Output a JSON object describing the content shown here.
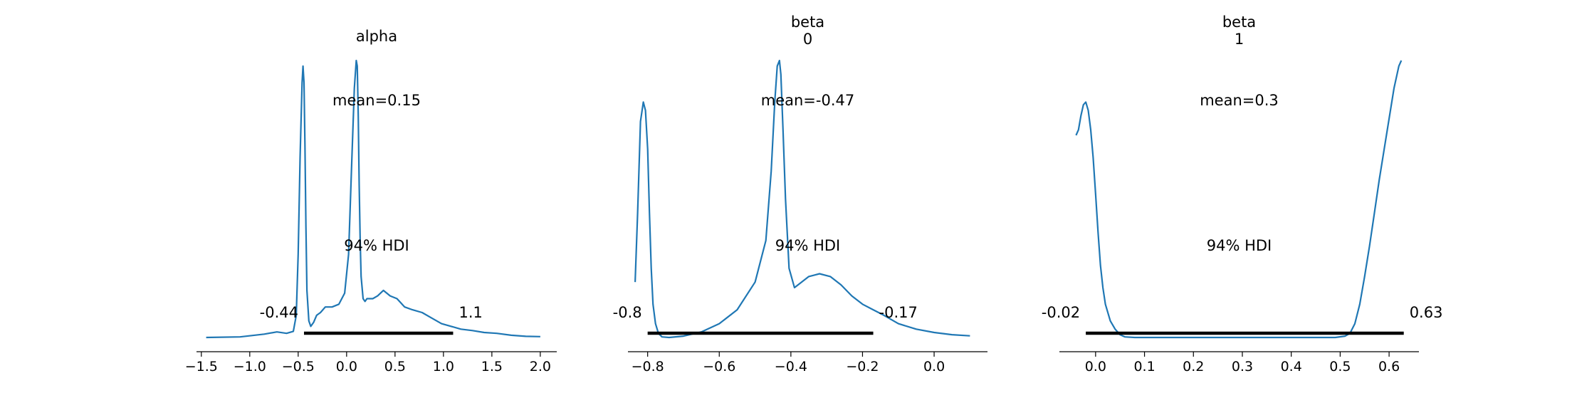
{
  "chart_data": [
    {
      "type": "area",
      "title_lines": [
        "alpha"
      ],
      "mean_label": "mean=0.15",
      "hdi_label": "94% HDI",
      "hdi": [
        -0.44,
        1.1
      ],
      "hdi_low_label": "-0.44",
      "hdi_high_label": "1.1",
      "xlim": [
        -1.55,
        2.17
      ],
      "xticks": [
        -1.5,
        -1.0,
        -0.5,
        0.0,
        0.5,
        1.0,
        1.5,
        2.0
      ],
      "xtick_labels": [
        "−1.5",
        "−1.0",
        "−0.5",
        "0.0",
        "0.5",
        "1.0",
        "1.5",
        "2.0"
      ],
      "series": [
        {
          "color": "#1f77b4",
          "x": [
            -1.45,
            -1.1,
            -0.85,
            -0.72,
            -0.62,
            -0.55,
            -0.52,
            -0.5,
            -0.48,
            -0.46,
            -0.45,
            -0.44,
            -0.43,
            -0.42,
            -0.41,
            -0.39,
            -0.37,
            -0.34,
            -0.31,
            -0.27,
            -0.22,
            -0.15,
            -0.08,
            -0.02,
            0.02,
            0.05,
            0.08,
            0.1,
            0.11,
            0.12,
            0.13,
            0.14,
            0.15,
            0.17,
            0.19,
            0.21,
            0.23,
            0.27,
            0.32,
            0.38,
            0.45,
            0.52,
            0.6,
            0.68,
            0.78,
            0.88,
            0.98,
            1.08,
            1.18,
            1.3,
            1.42,
            1.55,
            1.7,
            1.85,
            2.0
          ],
          "y": [
            0.0,
            0.002,
            0.012,
            0.02,
            0.015,
            0.022,
            0.08,
            0.3,
            0.65,
            0.92,
            0.98,
            0.92,
            0.7,
            0.4,
            0.17,
            0.06,
            0.04,
            0.055,
            0.08,
            0.09,
            0.11,
            0.11,
            0.12,
            0.16,
            0.3,
            0.6,
            0.9,
            1.0,
            0.98,
            0.8,
            0.55,
            0.35,
            0.22,
            0.14,
            0.13,
            0.14,
            0.14,
            0.14,
            0.15,
            0.17,
            0.15,
            0.14,
            0.11,
            0.1,
            0.09,
            0.07,
            0.05,
            0.04,
            0.03,
            0.025,
            0.018,
            0.015,
            0.008,
            0.004,
            0.003
          ]
        }
      ]
    },
    {
      "type": "area",
      "title_lines": [
        "beta",
        "0"
      ],
      "mean_label": "mean=-0.47",
      "hdi_label": "94% HDI",
      "hdi": [
        -0.8,
        -0.17
      ],
      "hdi_low_label": "-0.8",
      "hdi_high_label": "-0.17",
      "xlim": [
        -0.855,
        0.149
      ],
      "xticks": [
        -0.8,
        -0.6,
        -0.4,
        -0.2,
        0.0
      ],
      "xtick_labels": [
        "−0.8",
        "−0.6",
        "−0.4",
        "−0.2",
        "0.0"
      ],
      "series": [
        {
          "color": "#1f77b4",
          "x": [
            -0.835,
            -0.828,
            -0.82,
            -0.812,
            -0.806,
            -0.8,
            -0.795,
            -0.79,
            -0.785,
            -0.778,
            -0.77,
            -0.76,
            -0.74,
            -0.7,
            -0.65,
            -0.6,
            -0.55,
            -0.5,
            -0.47,
            -0.455,
            -0.445,
            -0.438,
            -0.432,
            -0.428,
            -0.422,
            -0.415,
            -0.405,
            -0.39,
            -0.38,
            -0.37,
            -0.35,
            -0.32,
            -0.29,
            -0.26,
            -0.23,
            -0.2,
            -0.17,
            -0.14,
            -0.1,
            -0.05,
            0.0,
            0.05,
            0.1
          ],
          "y": [
            0.2,
            0.45,
            0.78,
            0.85,
            0.82,
            0.68,
            0.45,
            0.25,
            0.12,
            0.05,
            0.015,
            0.002,
            0.0,
            0.005,
            0.02,
            0.05,
            0.1,
            0.2,
            0.35,
            0.6,
            0.85,
            0.98,
            1.0,
            0.95,
            0.75,
            0.5,
            0.25,
            0.18,
            0.19,
            0.2,
            0.22,
            0.23,
            0.22,
            0.19,
            0.15,
            0.12,
            0.1,
            0.08,
            0.05,
            0.03,
            0.018,
            0.01,
            0.006
          ]
        }
      ]
    },
    {
      "type": "area",
      "title_lines": [
        "beta",
        "1"
      ],
      "mean_label": "mean=0.3",
      "hdi_label": "94% HDI",
      "hdi": [
        -0.02,
        0.63
      ],
      "hdi_low_label": "-0.02",
      "hdi_high_label": "0.63",
      "xlim": [
        -0.074,
        0.661
      ],
      "xticks": [
        0.0,
        0.1,
        0.2,
        0.3,
        0.4,
        0.5,
        0.6
      ],
      "xtick_labels": [
        "0.0",
        "0.1",
        "0.2",
        "0.3",
        "0.4",
        "0.5",
        "0.6"
      ],
      "series": [
        {
          "color": "#1f77b4",
          "x": [
            -0.04,
            -0.035,
            -0.03,
            -0.025,
            -0.02,
            -0.015,
            -0.01,
            -0.005,
            0.0,
            0.005,
            0.01,
            0.015,
            0.02,
            0.03,
            0.04,
            0.05,
            0.06,
            0.08,
            0.1,
            0.2,
            0.3,
            0.4,
            0.49,
            0.51,
            0.52,
            0.53,
            0.54,
            0.55,
            0.56,
            0.57,
            0.58,
            0.59,
            0.6,
            0.61,
            0.62,
            0.625
          ],
          "y": [
            0.73,
            0.75,
            0.8,
            0.84,
            0.85,
            0.82,
            0.75,
            0.65,
            0.52,
            0.38,
            0.26,
            0.18,
            0.12,
            0.06,
            0.03,
            0.01,
            0.002,
            0.0,
            0.0,
            0.0,
            0.0,
            0.0,
            0.0,
            0.005,
            0.015,
            0.05,
            0.12,
            0.22,
            0.33,
            0.45,
            0.57,
            0.68,
            0.79,
            0.9,
            0.98,
            1.0
          ]
        }
      ]
    }
  ]
}
